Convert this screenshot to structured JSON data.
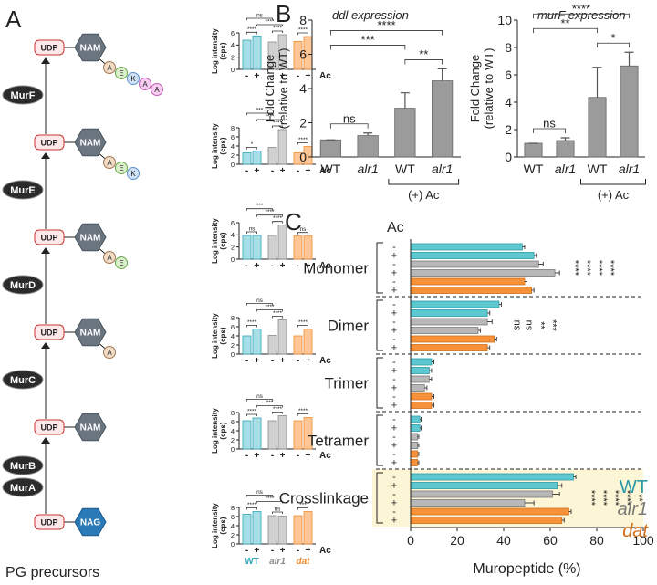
{
  "panel_labels": [
    "A",
    "B",
    "C"
  ],
  "pathway": {
    "enzymes": [
      "MurF",
      "MurE",
      "MurD",
      "MurC",
      "MurB",
      "MurA"
    ],
    "udp": "UDP",
    "nam": "NAM",
    "nag": "NAG",
    "residues": [
      "A",
      "E",
      "K",
      "A",
      "A"
    ],
    "caption": "PG precursors"
  },
  "chart_data": [
    {
      "type": "bar",
      "ylabel": [
        "Log intensity",
        "(cps)"
      ],
      "categories": [
        "-",
        "+",
        "-",
        "+",
        "-",
        "+"
      ],
      "group_label": "Ac",
      "values": [
        4.8,
        5.5,
        4.5,
        5.7,
        4.6,
        5.4
      ],
      "ylim": [
        0,
        6
      ],
      "yticks": [
        0,
        2,
        4,
        6
      ],
      "colors": [
        "#a8dee7",
        "#a8dee7",
        "#d0d0d0",
        "#d0d0d0",
        "#ffc696",
        "#ffc696"
      ],
      "edge_colors": [
        "#2fa6b5",
        "#2fa6b5",
        "#8a8a8a",
        "#8a8a8a",
        "#f08a30",
        "#f08a30"
      ],
      "annotations": [
        "ns",
        "****",
        "****",
        "****",
        "****"
      ]
    },
    {
      "type": "bar",
      "ylabel": [
        "Log intensity",
        "(cps)"
      ],
      "categories": [
        "-",
        "+",
        "-",
        "+",
        "-",
        "+"
      ],
      "group_label": "Ac",
      "values": [
        2.5,
        2.9,
        3.7,
        7.6,
        2.5,
        3.9
      ],
      "ylim": [
        0,
        8
      ],
      "yticks": [
        0,
        2,
        4,
        6,
        8
      ],
      "colors": [
        "#a8dee7",
        "#a8dee7",
        "#d0d0d0",
        "#d0d0d0",
        "#ffc696",
        "#ffc696"
      ],
      "edge_colors": [
        "#2fa6b5",
        "#2fa6b5",
        "#8a8a8a",
        "#8a8a8a",
        "#f08a30",
        "#f08a30"
      ],
      "annotations": [
        "***",
        "****",
        "*",
        "****",
        "****"
      ]
    },
    {
      "type": "bar",
      "ylabel": [
        "Log intensity",
        "(cps)"
      ],
      "categories": [
        "-",
        "+",
        "-",
        "+",
        "-",
        "+"
      ],
      "group_label": "Ac",
      "values": [
        3.9,
        3.9,
        3.9,
        5.6,
        3.8,
        3.8
      ],
      "ylim": [
        0,
        6
      ],
      "yticks": [
        0,
        2,
        4,
        6
      ],
      "colors": [
        "#a8dee7",
        "#a8dee7",
        "#d0d0d0",
        "#d0d0d0",
        "#ffc696",
        "#ffc696"
      ],
      "edge_colors": [
        "#2fa6b5",
        "#2fa6b5",
        "#8a8a8a",
        "#8a8a8a",
        "#f08a30",
        "#f08a30"
      ],
      "annotations": [
        "***",
        "****",
        "ns",
        "****",
        "ns"
      ]
    },
    {
      "type": "bar",
      "ylabel": [
        "Log intensity",
        "(cps)"
      ],
      "categories": [
        "-",
        "+",
        "-",
        "+",
        "-",
        "+"
      ],
      "group_label": "Ac",
      "values": [
        4.0,
        5.5,
        4.1,
        7.5,
        4.0,
        5.5
      ],
      "ylim": [
        0,
        8
      ],
      "yticks": [
        0,
        2,
        4,
        6,
        8
      ],
      "colors": [
        "#a8dee7",
        "#a8dee7",
        "#d0d0d0",
        "#d0d0d0",
        "#ffc696",
        "#ffc696"
      ],
      "edge_colors": [
        "#2fa6b5",
        "#2fa6b5",
        "#8a8a8a",
        "#8a8a8a",
        "#f08a30",
        "#f08a30"
      ],
      "annotations": [
        "ns",
        "****",
        "****",
        "****",
        "****"
      ]
    },
    {
      "type": "bar",
      "ylabel": [
        "Log intensity",
        "(cps)"
      ],
      "categories": [
        "-",
        "+",
        "-",
        "+",
        "-",
        "+"
      ],
      "group_label": "Ac",
      "values": [
        6.2,
        6.8,
        6.2,
        7.3,
        6.2,
        6.9
      ],
      "ylim": [
        0,
        8
      ],
      "yticks": [
        0,
        2,
        4,
        6,
        8
      ],
      "colors": [
        "#a8dee7",
        "#a8dee7",
        "#d0d0d0",
        "#d0d0d0",
        "#ffc696",
        "#ffc696"
      ],
      "edge_colors": [
        "#2fa6b5",
        "#2fa6b5",
        "#8a8a8a",
        "#8a8a8a",
        "#f08a30",
        "#f08a30"
      ],
      "annotations": [
        "ns",
        "***",
        "****",
        "****",
        "****"
      ]
    },
    {
      "type": "bar",
      "ylabel": [
        "Log intensity",
        "(cps)"
      ],
      "categories": [
        "-",
        "+",
        "-",
        "+",
        "-",
        "+"
      ],
      "group_label": "Ac",
      "values": [
        6.5,
        7.1,
        6.2,
        6.1,
        6.2,
        7.1
      ],
      "ylim": [
        0,
        8
      ],
      "yticks": [
        0,
        2,
        4,
        6,
        8
      ],
      "colors": [
        "#a8dee7",
        "#a8dee7",
        "#d0d0d0",
        "#d0d0d0",
        "#ffc696",
        "#ffc696"
      ],
      "edge_colors": [
        "#2fa6b5",
        "#2fa6b5",
        "#8a8a8a",
        "#8a8a8a",
        "#f08a30",
        "#f08a30"
      ],
      "annotations": [
        "ns",
        "****",
        "****",
        "ns",
        "***"
      ],
      "groups": [
        "WT",
        "alr1",
        "dat"
      ]
    },
    {
      "type": "errbar",
      "title": "ddl expression",
      "ylabel": [
        "Fold Change",
        "(relative to WT)"
      ],
      "categories": [
        "WT",
        "alr1",
        "WT",
        "alr1"
      ],
      "group_label": "(+) Ac",
      "values": [
        1.0,
        1.25,
        2.85,
        4.45
      ],
      "errors": [
        0,
        0.15,
        0.9,
        0.7
      ],
      "color": "#9b9b9b",
      "ylim": [
        0,
        8
      ],
      "yticks": [
        0,
        2,
        4,
        6,
        8
      ],
      "annotations": [
        "ns",
        "***",
        "**",
        "****"
      ]
    },
    {
      "type": "errbar",
      "title": "murF expression",
      "ylabel": [
        "Fold Change",
        "(relative to WT)"
      ],
      "categories": [
        "WT",
        "alr1",
        "WT",
        "alr1"
      ],
      "group_label": "(+) Ac",
      "values": [
        1.0,
        1.2,
        4.35,
        6.65
      ],
      "errors": [
        0,
        0.2,
        2.2,
        1.0
      ],
      "color": "#9b9b9b",
      "ylim": [
        0,
        10
      ],
      "yticks": [
        0,
        2,
        4,
        6,
        8,
        10
      ],
      "annotations": [
        "ns",
        "**",
        "*",
        "****"
      ]
    },
    {
      "type": "hbar",
      "xlabel": "Muropeptide (%)",
      "group_label": "Ac",
      "groups": [
        "Monomer",
        "Dimer",
        "Trimer",
        "Tetramer",
        "Crosslinkage"
      ],
      "row_labels": [
        "-",
        "+",
        "-",
        "+",
        "-",
        "+"
      ],
      "legend": [
        "WT",
        "alr1",
        "dat"
      ],
      "colors": [
        "#5ec8d1",
        "#b8b8b8",
        "#f7923a"
      ],
      "edge_colors": [
        "#2a9aa8",
        "#7a7a7a",
        "#d26e18"
      ],
      "values": [
        [
          48,
          53,
          55,
          62,
          49,
          52
        ],
        [
          38,
          33,
          33,
          29,
          36,
          33
        ],
        [
          9,
          8,
          8,
          6,
          9,
          9
        ],
        [
          4,
          4,
          3,
          3,
          3,
          3
        ],
        [
          70,
          63,
          61,
          49,
          68,
          65
        ]
      ],
      "errors": [
        [
          1,
          1,
          2,
          2,
          1,
          1
        ],
        [
          1,
          1,
          2,
          1,
          1,
          1
        ],
        [
          1,
          1,
          1,
          1,
          1,
          1
        ],
        [
          0.5,
          0.5,
          0.5,
          0.5,
          0.5,
          0.5
        ],
        [
          1,
          2,
          3,
          4,
          1,
          1
        ]
      ],
      "xlim": [
        0,
        100
      ],
      "xticks": [
        0,
        20,
        40,
        60,
        80,
        100
      ],
      "annotations": [
        [
          "****",
          "****",
          "****",
          "****"
        ],
        [
          "ns",
          "ns",
          "**",
          "***"
        ],
        [],
        [],
        [
          "****",
          "****",
          "****",
          "****",
          "**"
        ]
      ]
    }
  ]
}
